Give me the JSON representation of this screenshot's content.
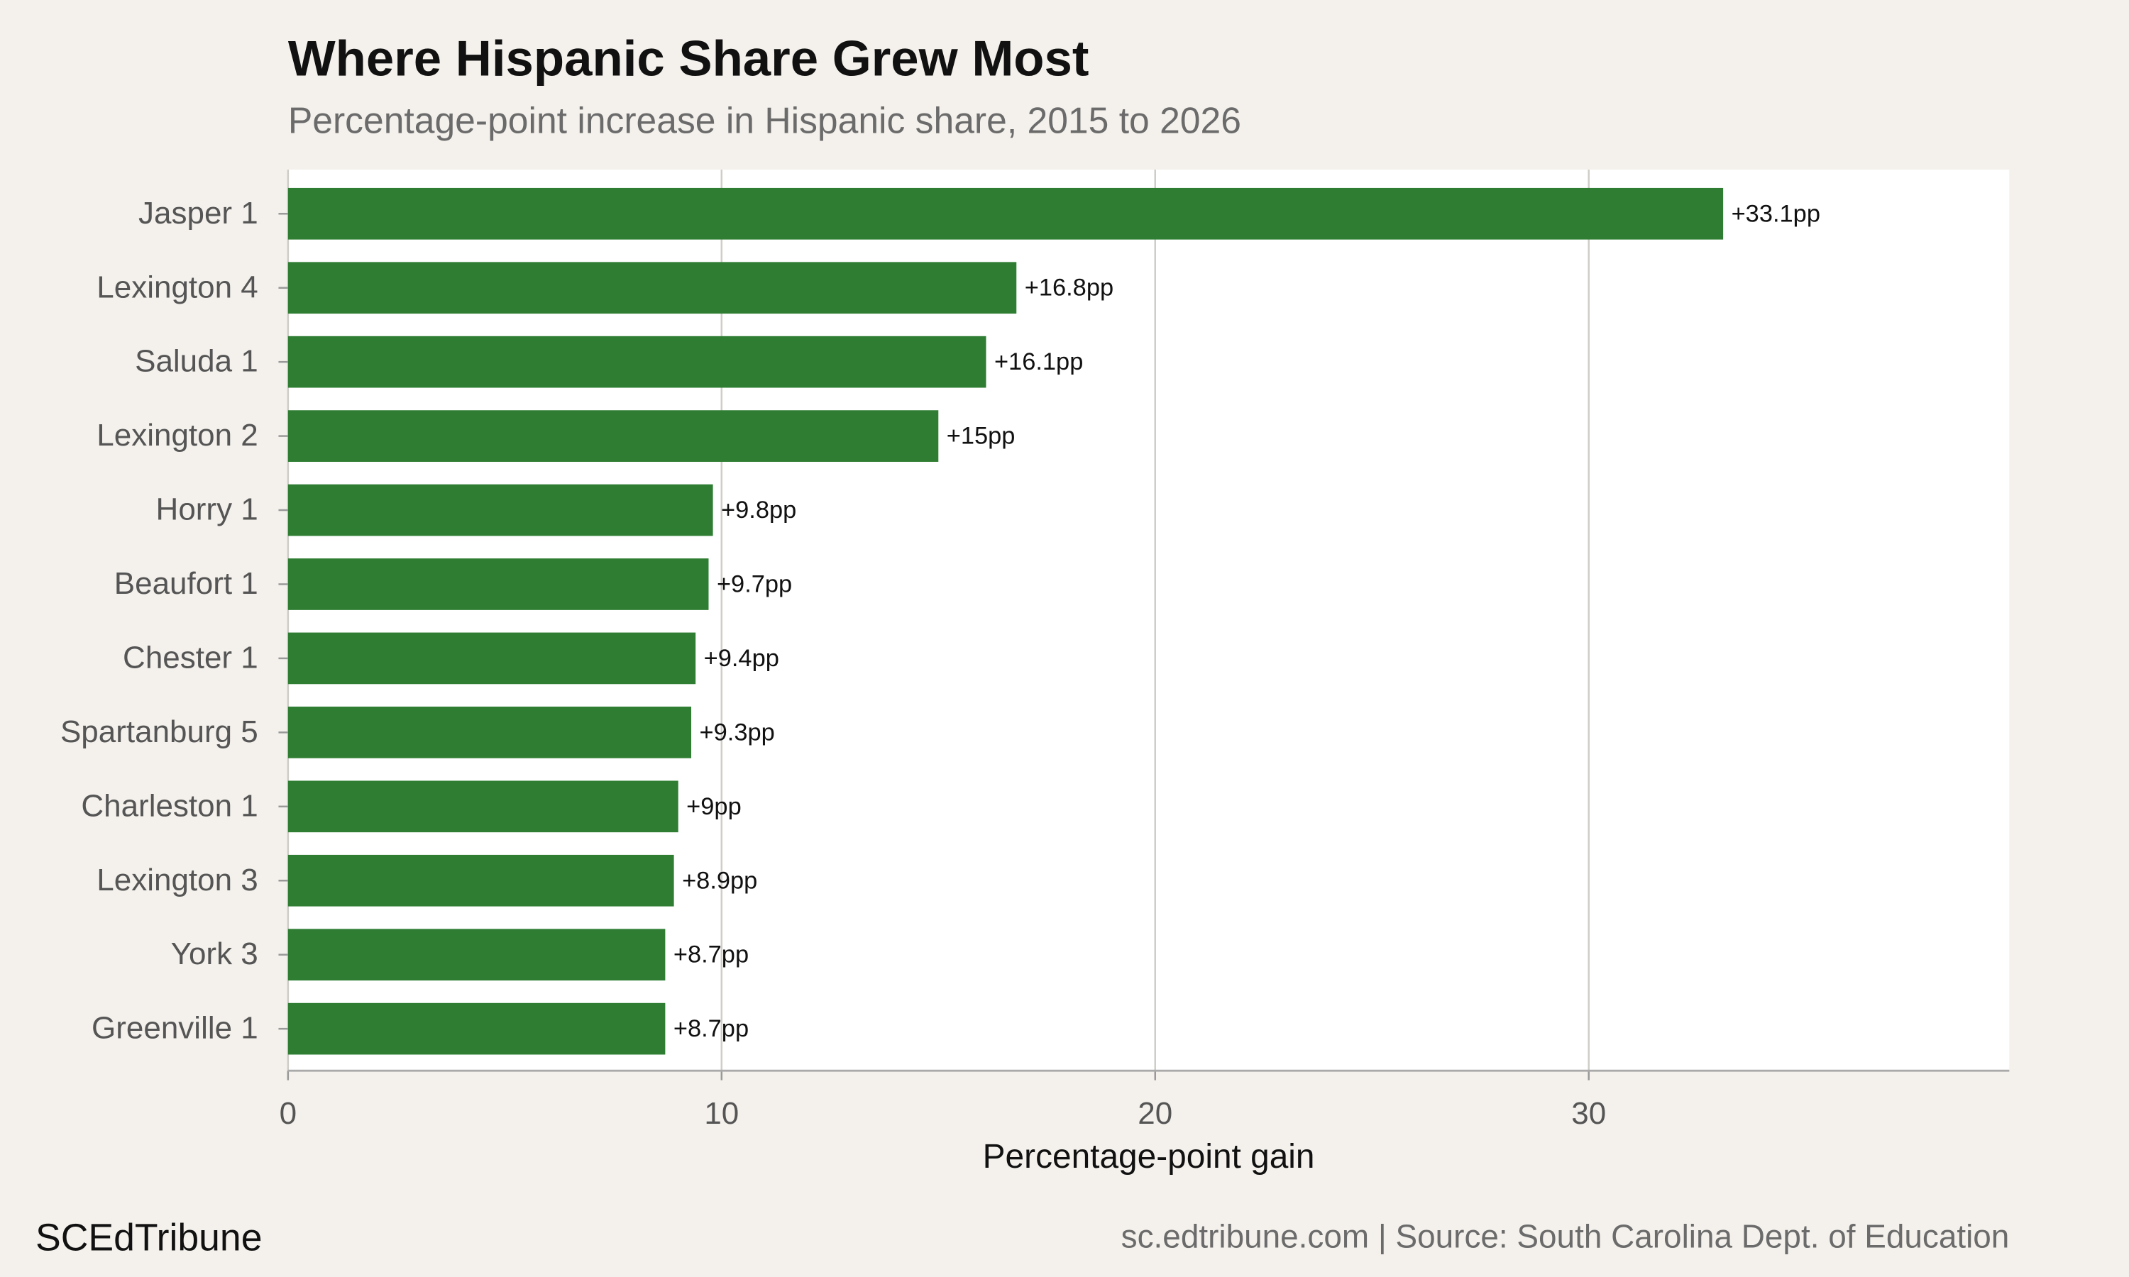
{
  "chart_data": {
    "type": "bar",
    "orientation": "horizontal",
    "title": "Where Hispanic Share Grew Most",
    "subtitle": "Percentage-point increase in Hispanic share, 2015 to 2026",
    "x_label": "Percentage-point gain",
    "categories": [
      "Jasper 1",
      "Lexington 4",
      "Saluda 1",
      "Lexington 2",
      "Horry 1",
      "Beaufort 1",
      "Chester 1",
      "Spartanburg 5",
      "Charleston 1",
      "Lexington 3",
      "York 3",
      "Greenville 1"
    ],
    "values": [
      33.1,
      16.8,
      16.1,
      15,
      9.8,
      9.7,
      9.4,
      9.3,
      9,
      8.9,
      8.7,
      8.7
    ],
    "value_labels": [
      "+33.1pp",
      "+16.8pp",
      "+16.1pp",
      "+15pp",
      "+9.8pp",
      "+9.7pp",
      "+9.4pp",
      "+9.3pp",
      "+9pp",
      "+8.9pp",
      "+8.7pp",
      "+8.7pp"
    ],
    "color": "#2e7d32",
    "xlim": [
      0,
      39.7
    ],
    "xticks": [
      0,
      10,
      20,
      30
    ],
    "grid": true,
    "footer_left": "SCEdTribune",
    "footer_right": "sc.edtribune.com | Source: South Carolina Dept. of Education"
  }
}
